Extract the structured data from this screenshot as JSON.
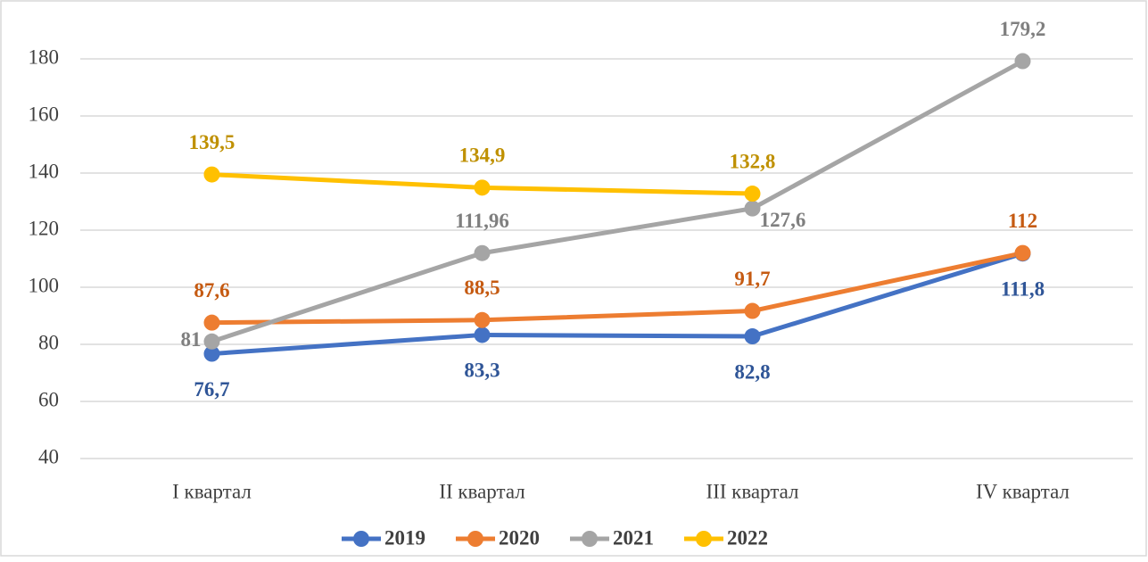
{
  "chart_data": {
    "type": "line",
    "categories": [
      "I квартал",
      "II квартал",
      "III квартал",
      "IV квартал"
    ],
    "series": [
      {
        "name": "2019",
        "color": "#4472c4",
        "label_color": "#2f5597",
        "values": [
          76.7,
          83.3,
          82.8,
          111.8
        ],
        "value_labels": [
          "76,7",
          "83,3",
          "82,8",
          "111,8"
        ]
      },
      {
        "name": "2020",
        "color": "#ed7d31",
        "label_color": "#c55a11",
        "values": [
          87.6,
          88.5,
          91.7,
          112
        ],
        "value_labels": [
          "87,6",
          "88,5",
          "91,7",
          "112"
        ]
      },
      {
        "name": "2021",
        "color": "#a5a5a5",
        "label_color": "#7f7f7f",
        "values": [
          81,
          111.96,
          127.6,
          179.2
        ],
        "value_labels": [
          "81",
          "111,96",
          "127,6",
          "179,2"
        ]
      },
      {
        "name": "2022",
        "color": "#ffc000",
        "label_color": "#bf9000",
        "values": [
          139.5,
          134.9,
          132.8,
          null
        ],
        "value_labels": [
          "139,5",
          "134,9",
          "132,8",
          null
        ]
      }
    ],
    "ylim": [
      40,
      180
    ],
    "yticks": [
      40,
      60,
      80,
      100,
      120,
      140,
      160,
      180
    ],
    "grid": true,
    "legend": "bottom"
  }
}
